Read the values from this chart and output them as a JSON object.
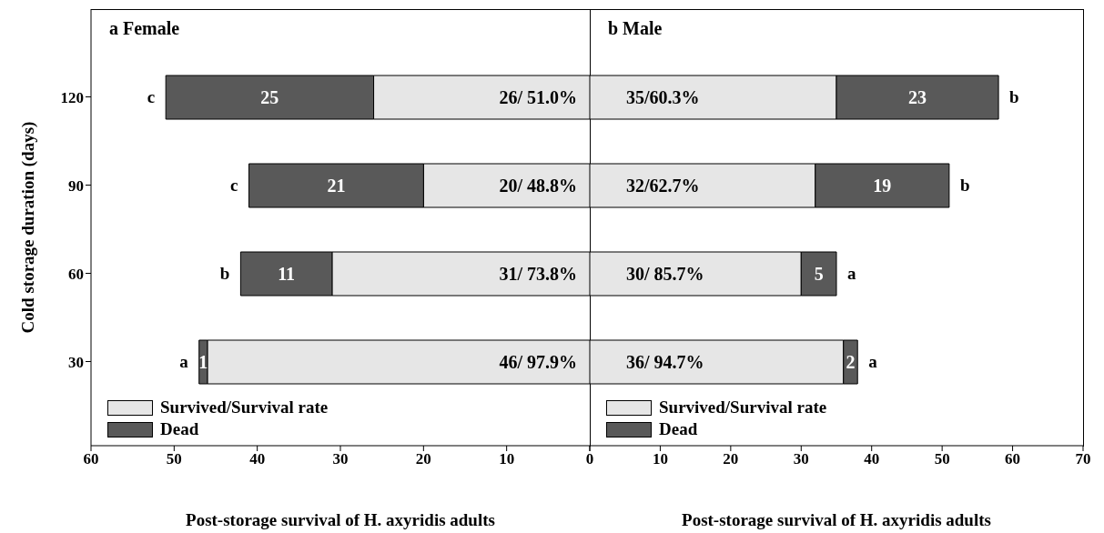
{
  "chart_data": [
    {
      "type": "bar",
      "orientation": "horizontal",
      "stacked": true,
      "title": "a Female",
      "xlabel": "Post-storage survival of H. axyridis adults",
      "ylabel": "Cold storage duration (days)",
      "categories": [
        "120",
        "90",
        "60",
        "30"
      ],
      "series": [
        {
          "name": "Survived/Survival rate",
          "color": "#e6e6e6",
          "values": [
            26,
            20,
            31,
            46
          ],
          "value_labels": [
            "26/ 51.0%",
            "20/ 48.8%",
            "31/ 73.8%",
            "46/ 97.9%"
          ]
        },
        {
          "name": "Dead",
          "color": "#595959",
          "values": [
            25,
            21,
            11,
            1
          ],
          "value_labels": [
            "25",
            "21",
            "11",
            "1"
          ]
        }
      ],
      "xlim": [
        60,
        0
      ],
      "xticks": [
        60,
        50,
        40,
        30,
        20,
        10,
        {
          "value": 0,
          "label": null
        }
      ],
      "legend": "bottom left",
      "annotations": [
        {
          "text": "c",
          "x": 51,
          "y": "120"
        },
        {
          "text": "c",
          "x": 41,
          "y": "90"
        },
        {
          "text": "b",
          "x": 42,
          "y": "60"
        },
        {
          "text": "a",
          "x": 47,
          "y": "30"
        }
      ]
    },
    {
      "type": "bar",
      "orientation": "horizontal",
      "stacked": true,
      "title": "b Male",
      "xlabel": "Post-storage survival of H. axyridis adults",
      "categories": [
        "120",
        "90",
        "60",
        "30"
      ],
      "series": [
        {
          "name": "Survived/Survival rate",
          "color": "#e6e6e6",
          "values": [
            35,
            32,
            30,
            36
          ],
          "value_labels": [
            "35/60.3%",
            "32/62.7%",
            "30/ 85.7%",
            "36/ 94.7%"
          ]
        },
        {
          "name": "Dead",
          "color": "#595959",
          "values": [
            23,
            19,
            5,
            2
          ],
          "value_labels": [
            "23",
            "19",
            "5",
            "2"
          ]
        }
      ],
      "xlim": [
        0,
        70
      ],
      "xticks": [
        0,
        10,
        20,
        30,
        40,
        50,
        60,
        70
      ],
      "legend": "bottom left",
      "tick_labels": "x",
      "annotations": [
        {
          "text": "b",
          "x": 58,
          "y": "120"
        },
        {
          "text": "b",
          "x": 51,
          "y": "90"
        },
        {
          "text": "a",
          "x": 35,
          "y": "60"
        },
        {
          "text": "a",
          "x": 38,
          "y": "30"
        }
      ]
    }
  ]
}
